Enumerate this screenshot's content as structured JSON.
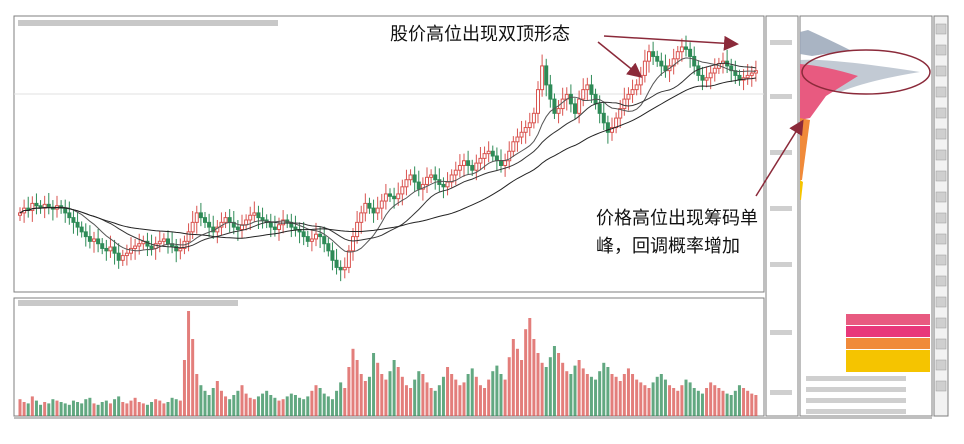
{
  "annotations": {
    "double_top": "股价高位出现双顶形态",
    "chip_peak_line1": "价格高位出现筹码单",
    "chip_peak_line2": "峰，回调概率增加"
  },
  "colors": {
    "up": "#d9534f",
    "down": "#2e8b57",
    "ma_line": "#444444",
    "chip_top": "#9aa7b8",
    "chip_upper": "#e85a80",
    "chip_lower": "#f08a3a",
    "chip_bottom": "#f5c400",
    "panel_border": "#7f7f7f"
  },
  "chart_data": {
    "type": "candlestick",
    "x": [
      1,
      2,
      3,
      4,
      5,
      6,
      7,
      8,
      9,
      10,
      11,
      12,
      13,
      14,
      15,
      16,
      17,
      18,
      19,
      20,
      21,
      22,
      23,
      24,
      25,
      26,
      27,
      28,
      29,
      30,
      31,
      32,
      33,
      34,
      35,
      36,
      37,
      38,
      39,
      40,
      41,
      42,
      43,
      44,
      45,
      46,
      47,
      48,
      49,
      50,
      51,
      52,
      53,
      54,
      55,
      56,
      57,
      58,
      59,
      60,
      61,
      62,
      63,
      64,
      65,
      66,
      67,
      68,
      69,
      70,
      71,
      72,
      73,
      74,
      75,
      76,
      77,
      78,
      79,
      80,
      81,
      82,
      83,
      84,
      85,
      86,
      87,
      88,
      89,
      90,
      91,
      92,
      93,
      94,
      95,
      96,
      97,
      98,
      99,
      100,
      101,
      102,
      103,
      104,
      105,
      106,
      107,
      108,
      109,
      110,
      111,
      112,
      113,
      114,
      115,
      116,
      117,
      118,
      119,
      120,
      121,
      122,
      123,
      124,
      125,
      126,
      127,
      128,
      129,
      130,
      131,
      132,
      133,
      134,
      135,
      136,
      137,
      138,
      139,
      140,
      141,
      142,
      143,
      144,
      145,
      146,
      147,
      148,
      149,
      150,
      151,
      152,
      153,
      154,
      155,
      156,
      157,
      158,
      159,
      160,
      161,
      162,
      163,
      164,
      165,
      166,
      167,
      168,
      169,
      170,
      171,
      172,
      173,
      174,
      175,
      176,
      177,
      178,
      179,
      180
    ],
    "close": [
      10.1,
      10.2,
      10.15,
      10.3,
      10.25,
      10.2,
      10.28,
      10.22,
      10.18,
      10.25,
      10.2,
      10.1,
      10.0,
      9.9,
      9.8,
      9.7,
      9.6,
      9.5,
      9.55,
      9.45,
      9.35,
      9.3,
      9.38,
      9.25,
      9.1,
      9.2,
      9.25,
      9.35,
      9.4,
      9.45,
      9.5,
      9.4,
      9.35,
      9.45,
      9.5,
      9.55,
      9.45,
      9.4,
      9.3,
      9.35,
      9.5,
      9.7,
      9.9,
      10.1,
      10.0,
      9.9,
      9.8,
      9.7,
      9.8,
      9.9,
      10.0,
      9.9,
      9.8,
      9.75,
      9.85,
      9.95,
      10.05,
      10.1,
      10.0,
      9.95,
      9.9,
      9.8,
      9.75,
      9.85,
      9.95,
      9.9,
      9.8,
      9.75,
      9.7,
      9.6,
      9.5,
      9.55,
      9.65,
      9.6,
      9.45,
      9.3,
      9.1,
      8.95,
      8.9,
      8.95,
      9.3,
      9.6,
      9.9,
      10.1,
      10.3,
      10.2,
      10.1,
      10.2,
      10.35,
      10.5,
      10.45,
      10.4,
      10.5,
      10.65,
      10.8,
      10.9,
      10.75,
      10.6,
      10.7,
      10.85,
      10.9,
      10.8,
      10.7,
      10.65,
      10.75,
      10.9,
      11.0,
      11.1,
      11.2,
      11.1,
      11.0,
      11.15,
      11.25,
      11.35,
      11.4,
      11.3,
      11.2,
      11.1,
      11.2,
      11.4,
      11.6,
      11.7,
      11.8,
      11.9,
      12.0,
      12.2,
      12.7,
      13.2,
      12.8,
      12.5,
      12.2,
      12.3,
      12.5,
      12.6,
      12.4,
      12.2,
      12.5,
      12.7,
      12.8,
      12.6,
      12.4,
      12.2,
      12.0,
      11.8,
      11.9,
      12.1,
      12.3,
      12.5,
      12.6,
      12.7,
      12.8,
      13.0,
      13.3,
      13.5,
      13.4,
      13.3,
      13.2,
      13.1,
      13.2,
      13.35,
      13.5,
      13.6,
      13.55,
      13.4,
      13.2,
      13.0,
      12.9,
      12.95,
      13.05,
      13.15,
      13.25,
      13.3,
      13.2,
      13.1,
      13.0,
      12.9,
      12.95,
      13.0,
      13.05,
      13.1
    ],
    "volume": [
      12,
      10,
      9,
      14,
      11,
      8,
      10,
      9,
      12,
      11,
      10,
      9,
      8,
      11,
      10,
      9,
      12,
      13,
      9,
      8,
      10,
      11,
      9,
      12,
      14,
      10,
      9,
      11,
      13,
      10,
      9,
      8,
      10,
      12,
      11,
      9,
      10,
      13,
      12,
      11,
      40,
      75,
      55,
      30,
      22,
      18,
      15,
      20,
      25,
      18,
      14,
      12,
      15,
      18,
      22,
      16,
      13,
      12,
      14,
      16,
      18,
      15,
      13,
      11,
      12,
      14,
      16,
      15,
      13,
      12,
      14,
      18,
      22,
      20,
      16,
      14,
      12,
      18,
      24,
      20,
      35,
      48,
      40,
      30,
      25,
      28,
      45,
      38,
      30,
      26,
      32,
      40,
      35,
      28,
      22,
      20,
      26,
      32,
      30,
      24,
      20,
      18,
      22,
      28,
      35,
      30,
      26,
      22,
      24,
      30,
      34,
      28,
      22,
      20,
      26,
      32,
      36,
      30,
      26,
      42,
      55,
      48,
      40,
      62,
      70,
      55,
      45,
      38,
      35,
      42,
      50,
      45,
      38,
      32,
      30,
      36,
      40,
      34,
      30,
      28,
      26,
      32,
      38,
      35,
      30,
      28,
      25,
      30,
      34,
      30,
      26,
      24,
      22,
      20,
      24,
      28,
      30,
      26,
      22,
      20,
      18,
      22,
      26,
      24,
      20,
      18,
      16,
      20,
      24,
      22,
      20,
      18,
      16,
      15,
      18,
      22,
      20,
      18,
      16,
      15
    ]
  }
}
